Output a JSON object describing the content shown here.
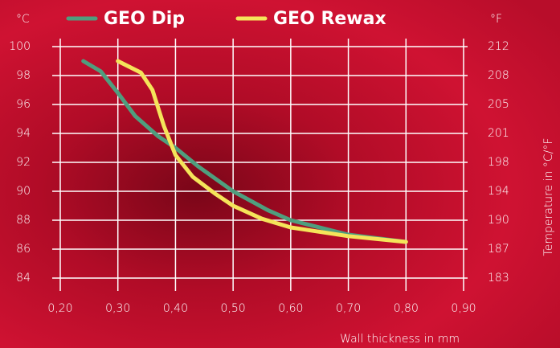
{
  "chart_data": {
    "type": "line",
    "y_axis_label": "°C",
    "y2_axis_label": "°F",
    "y2_title": "Temperature in °C/°F",
    "x_axis_label": "Wall thickness in mm",
    "xlim": [
      0.2,
      0.9
    ],
    "xticks": [
      {
        "value": 0.2,
        "label": "0,20"
      },
      {
        "value": 0.3,
        "label": "0,30"
      },
      {
        "value": 0.4,
        "label": "0,40"
      },
      {
        "value": 0.5,
        "label": "0,50"
      },
      {
        "value": 0.6,
        "label": "0,60"
      },
      {
        "value": 0.7,
        "label": "0,70"
      },
      {
        "value": 0.8,
        "label": "0,80"
      },
      {
        "value": 0.9,
        "label": "0,90"
      }
    ],
    "ylim": [
      84,
      100
    ],
    "yticks": [
      100,
      98,
      96,
      94,
      92,
      90,
      88,
      86,
      84
    ],
    "y2lim": [
      183.2,
      212
    ],
    "y2ticks": [
      {
        "value": 212,
        "label": "212"
      },
      {
        "value": 208.4,
        "label": "208"
      },
      {
        "value": 204.8,
        "label": "205"
      },
      {
        "value": 201.2,
        "label": "201"
      },
      {
        "value": 197.6,
        "label": "198"
      },
      {
        "value": 194,
        "label": "194"
      },
      {
        "value": 190.4,
        "label": "190"
      },
      {
        "value": 186.8,
        "label": "187"
      },
      {
        "value": 183.2,
        "label": "183"
      }
    ],
    "grid": true,
    "series": [
      {
        "name": "GEO Dip",
        "color": "#4f9e7e",
        "x": [
          0.24,
          0.27,
          0.3,
          0.33,
          0.37,
          0.4,
          0.44,
          0.5,
          0.56,
          0.6,
          0.7,
          0.8
        ],
        "values": [
          99,
          98.3,
          96.8,
          95.2,
          93.8,
          93,
          91.7,
          90,
          88.7,
          88,
          87,
          86.5
        ]
      },
      {
        "name": "GEO Rewax",
        "color": "#f5e45a",
        "x": [
          0.3,
          0.34,
          0.36,
          0.38,
          0.4,
          0.43,
          0.47,
          0.5,
          0.55,
          0.6,
          0.7,
          0.8
        ],
        "values": [
          99,
          98.2,
          97,
          94.5,
          92.5,
          91,
          89.8,
          89,
          88.1,
          87.5,
          86.9,
          86.5
        ]
      }
    ]
  }
}
